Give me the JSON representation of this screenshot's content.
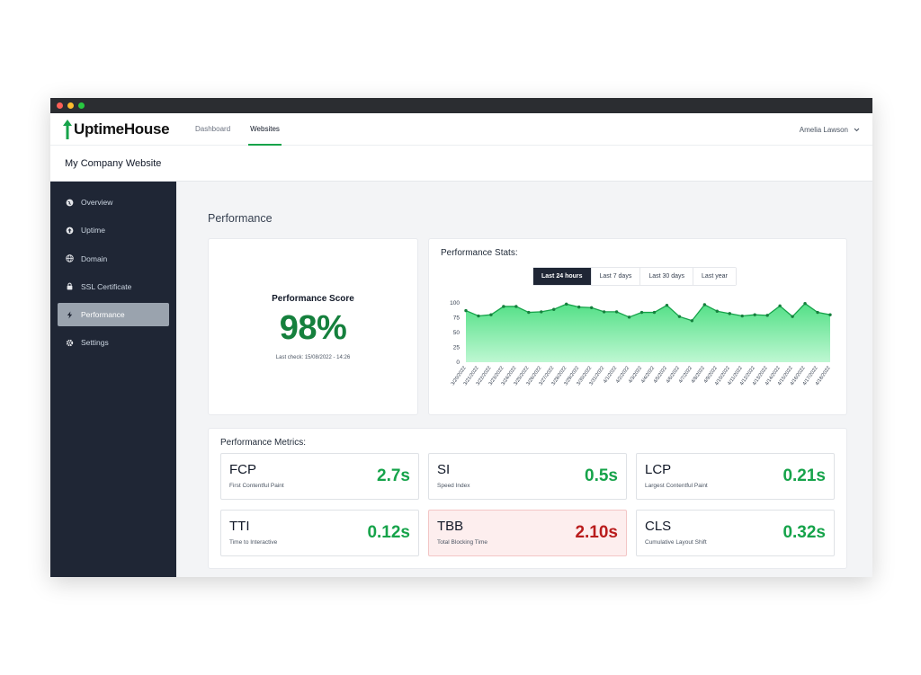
{
  "app": {
    "logo_text": "UptimeHouse",
    "nav": [
      {
        "label": "Dashboard"
      },
      {
        "label": "Websites"
      }
    ],
    "user_name": "Amelia Lawson"
  },
  "site_title": "My Company Website",
  "sidebar": {
    "items": [
      {
        "label": "Overview",
        "icon": "globe-icon"
      },
      {
        "label": "Uptime",
        "icon": "arrow-up-circle-icon"
      },
      {
        "label": "Domain",
        "icon": "globe-grid-icon"
      },
      {
        "label": "SSL Certificate",
        "icon": "lock-icon"
      },
      {
        "label": "Performance",
        "icon": "bolt-icon"
      },
      {
        "label": "Settings",
        "icon": "gear-icon"
      }
    ]
  },
  "main": {
    "title": "Performance",
    "score": {
      "label": "Performance Score",
      "value": "98%",
      "last_check": "Last check: 15/08/2022 - 14:26"
    },
    "stats": {
      "title": "Performance Stats:",
      "tabs": [
        "Last 24 hours",
        "Last 7 days",
        "Last 30 days",
        "Last year"
      ]
    },
    "metrics": {
      "title": "Performance Metrics:",
      "items": [
        {
          "abbr": "FCP",
          "name": "First Contentful Paint",
          "value": "2.7s"
        },
        {
          "abbr": "SI",
          "name": "Speed Index",
          "value": "0.5s"
        },
        {
          "abbr": "LCP",
          "name": "Largest Contentful Paint",
          "value": "0.21s"
        },
        {
          "abbr": "TTI",
          "name": "Time to Interactive",
          "value": "0.12s"
        },
        {
          "abbr": "TBB",
          "name": "Total Blocking Time",
          "value": "2.10s"
        },
        {
          "abbr": "CLS",
          "name": "Cumulative Layout Shift",
          "value": "0.32s"
        }
      ]
    }
  },
  "colors": {
    "accent": "#16a34a",
    "sidebar": "#1f2635",
    "danger": "#b91c1c",
    "chart_fill": "#4ade80"
  },
  "chart_data": {
    "type": "area",
    "x": [
      "3/20/2022",
      "3/21/2022",
      "3/22/2022",
      "3/23/2022",
      "3/24/2022",
      "3/25/2022",
      "3/26/2022",
      "3/27/2022",
      "3/28/2022",
      "3/29/2022",
      "3/30/2022",
      "3/31/2022",
      "4/1/2022",
      "4/2/2022",
      "4/3/2022",
      "4/4/2022",
      "4/5/2022",
      "4/6/2022",
      "4/7/2022",
      "4/8/2022",
      "4/9/2022",
      "4/10/2022",
      "4/11/2022",
      "4/12/2022",
      "4/13/2022",
      "4/14/2022",
      "4/15/2022",
      "4/16/2022",
      "4/17/2022",
      "4/18/2022"
    ],
    "values": [
      87,
      78,
      80,
      94,
      94,
      84,
      85,
      89,
      98,
      93,
      92,
      85,
      85,
      76,
      84,
      84,
      96,
      77,
      70,
      97,
      86,
      82,
      78,
      80,
      79,
      95,
      77,
      99,
      84,
      80
    ],
    "yticks": [
      0,
      25,
      50,
      75,
      100
    ],
    "ylim": [
      0,
      100
    ],
    "grid": false
  }
}
